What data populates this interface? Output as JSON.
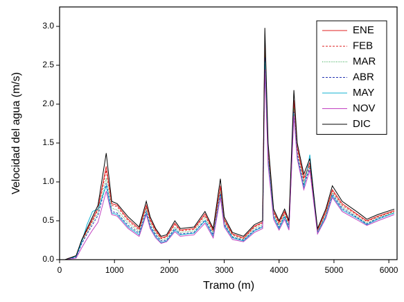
{
  "chart_data": {
    "type": "line",
    "x_label": "Tramo (m)",
    "y_label": "Velocidad del agua (m/s)",
    "x": [
      100,
      300,
      400,
      500,
      600,
      700,
      850,
      950,
      1050,
      1250,
      1450,
      1580,
      1650,
      1750,
      1850,
      1950,
      2100,
      2200,
      2450,
      2650,
      2800,
      2930,
      3000,
      3150,
      3350,
      3550,
      3700,
      3740,
      3800,
      3900,
      4000,
      4100,
      4180,
      4270,
      4330,
      4450,
      4560,
      4700,
      4850,
      4970,
      5150,
      5450,
      5600,
      5800,
      6100
    ],
    "series": [
      {
        "name": "ENE",
        "color": "#e02020",
        "dash": "",
        "values": [
          0,
          0.05,
          0.24,
          0.38,
          0.52,
          0.66,
          1.2,
          0.72,
          0.7,
          0.52,
          0.4,
          0.7,
          0.52,
          0.38,
          0.28,
          0.3,
          0.47,
          0.38,
          0.4,
          0.59,
          0.38,
          0.95,
          0.52,
          0.33,
          0.28,
          0.43,
          0.48,
          2.85,
          1.42,
          0.62,
          0.48,
          0.62,
          0.48,
          2.05,
          1.45,
          1.05,
          1.25,
          0.38,
          0.62,
          0.9,
          0.72,
          0.57,
          0.5,
          0.56,
          0.63
        ]
      },
      {
        "name": "FEB",
        "color": "#e03030",
        "dash": "3,2",
        "values": [
          0,
          0.04,
          0.23,
          0.37,
          0.5,
          0.64,
          1.15,
          0.7,
          0.68,
          0.5,
          0.38,
          0.68,
          0.5,
          0.36,
          0.27,
          0.29,
          0.45,
          0.37,
          0.39,
          0.57,
          0.36,
          0.92,
          0.5,
          0.32,
          0.27,
          0.42,
          0.47,
          2.8,
          1.4,
          0.6,
          0.46,
          0.6,
          0.46,
          2.0,
          1.42,
          1.02,
          1.22,
          0.37,
          0.6,
          0.88,
          0.7,
          0.56,
          0.49,
          0.55,
          0.62
        ]
      },
      {
        "name": "MAR",
        "color": "#20a040",
        "dash": "1,1.5",
        "values": [
          0,
          0.04,
          0.22,
          0.35,
          0.48,
          0.6,
          1.05,
          0.66,
          0.64,
          0.47,
          0.36,
          0.65,
          0.47,
          0.34,
          0.25,
          0.27,
          0.42,
          0.35,
          0.37,
          0.54,
          0.34,
          0.88,
          0.48,
          0.3,
          0.26,
          0.4,
          0.45,
          2.7,
          1.35,
          0.58,
          0.44,
          0.58,
          0.44,
          1.95,
          1.38,
          0.98,
          1.2,
          0.36,
          0.58,
          0.86,
          0.68,
          0.54,
          0.47,
          0.54,
          0.61
        ]
      },
      {
        "name": "ABR",
        "color": "#2030b0",
        "dash": "3,2",
        "values": [
          0,
          0.03,
          0.2,
          0.33,
          0.45,
          0.57,
          0.98,
          0.62,
          0.6,
          0.44,
          0.34,
          0.62,
          0.44,
          0.32,
          0.24,
          0.25,
          0.4,
          0.33,
          0.35,
          0.51,
          0.32,
          0.85,
          0.46,
          0.29,
          0.25,
          0.38,
          0.43,
          2.6,
          1.3,
          0.56,
          0.42,
          0.56,
          0.42,
          1.9,
          1.35,
          0.95,
          1.18,
          0.35,
          0.56,
          0.84,
          0.66,
          0.53,
          0.46,
          0.53,
          0.6
        ]
      },
      {
        "name": "MAY",
        "color": "#10b0d0",
        "dash": "",
        "values": [
          0,
          0.04,
          0.22,
          0.45,
          0.62,
          0.65,
          0.95,
          0.6,
          0.58,
          0.42,
          0.32,
          0.6,
          0.42,
          0.3,
          0.22,
          0.24,
          0.38,
          0.32,
          0.34,
          0.5,
          0.3,
          0.82,
          0.44,
          0.28,
          0.24,
          0.37,
          0.42,
          2.55,
          1.28,
          0.55,
          0.4,
          0.55,
          0.4,
          1.88,
          1.32,
          0.92,
          1.35,
          0.34,
          0.55,
          0.82,
          0.64,
          0.52,
          0.45,
          0.52,
          0.6
        ]
      },
      {
        "name": "NOV",
        "color": "#c040c0",
        "dash": "",
        "values": [
          0,
          0.02,
          0.15,
          0.27,
          0.38,
          0.48,
          0.88,
          0.58,
          0.56,
          0.4,
          0.3,
          0.58,
          0.4,
          0.28,
          0.21,
          0.23,
          0.36,
          0.3,
          0.32,
          0.47,
          0.28,
          0.8,
          0.42,
          0.26,
          0.23,
          0.35,
          0.4,
          2.45,
          1.22,
          0.52,
          0.38,
          0.52,
          0.38,
          1.85,
          1.3,
          0.9,
          1.15,
          0.33,
          0.53,
          0.8,
          0.62,
          0.5,
          0.44,
          0.5,
          0.58
        ]
      },
      {
        "name": "DIC",
        "color": "#000000",
        "dash": "",
        "values": [
          0,
          0.05,
          0.25,
          0.4,
          0.55,
          0.7,
          1.37,
          0.75,
          0.72,
          0.55,
          0.42,
          0.75,
          0.55,
          0.4,
          0.3,
          0.32,
          0.5,
          0.4,
          0.42,
          0.62,
          0.4,
          1.04,
          0.55,
          0.35,
          0.3,
          0.45,
          0.5,
          2.98,
          1.5,
          0.65,
          0.5,
          0.65,
          0.5,
          2.18,
          1.5,
          1.1,
          1.3,
          0.4,
          0.65,
          0.95,
          0.75,
          0.6,
          0.52,
          0.58,
          0.65
        ]
      }
    ],
    "xlim": [
      0,
      6150
    ],
    "ylim": [
      0,
      3.25
    ],
    "xticks": [
      0,
      1000,
      2000,
      3000,
      4000,
      5000,
      6000
    ],
    "yticks": [
      {
        "value": 0,
        "label": "0.0"
      },
      0.5,
      {
        "value": 1,
        "label": "1.0"
      },
      1.5,
      {
        "value": 2,
        "label": "2.0"
      },
      2.5,
      {
        "value": 3,
        "label": "3.0"
      }
    ],
    "legend": "upper right"
  }
}
